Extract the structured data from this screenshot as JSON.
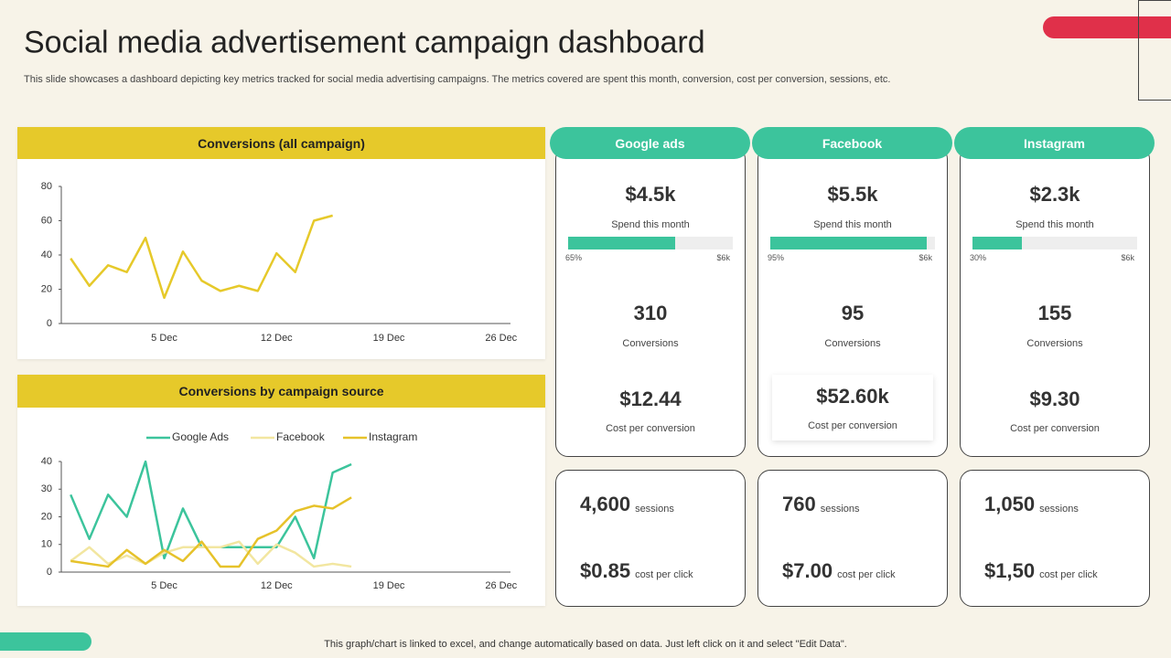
{
  "header": {
    "title": "Social media advertisement campaign dashboard",
    "subtitle": "This slide showcases a dashboard depicting key metrics tracked for social media advertising campaigns. The metrics covered are spent this month, conversion, cost per conversion, sessions, etc."
  },
  "chart_data": [
    {
      "type": "line",
      "title": "Conversions (all campaign)",
      "categories": [
        null,
        null,
        null,
        null,
        null,
        "5 Dec",
        null,
        null,
        null,
        null,
        null,
        "12 Dec",
        null,
        null,
        null,
        null,
        null,
        "19 Dec",
        null,
        null,
        null,
        null,
        null,
        "26 Dec"
      ],
      "values": [
        38,
        22,
        34,
        30,
        50,
        15,
        42,
        25,
        19,
        22,
        19,
        41,
        30,
        60,
        63,
        null,
        null,
        null,
        null,
        null,
        null,
        null,
        null,
        null
      ],
      "color": "#e6c92a",
      "ylim": [
        0,
        80
      ],
      "yticks": [
        0,
        20,
        40,
        60,
        80
      ],
      "grid": false
    },
    {
      "type": "line",
      "title": "Conversions by campaign source",
      "categories": [
        null,
        null,
        null,
        null,
        null,
        "5 Dec",
        null,
        null,
        null,
        null,
        null,
        "12 Dec",
        null,
        null,
        null,
        null,
        null,
        "19 Dec",
        null,
        null,
        null,
        null,
        null,
        "26 Dec"
      ],
      "series": [
        {
          "name": "Google Ads",
          "color": "#3cc49c",
          "values": [
            28,
            12,
            28,
            20,
            40,
            5,
            23,
            9,
            9,
            9,
            9,
            9,
            20,
            5,
            36,
            39,
            null,
            null,
            null,
            null,
            null,
            null,
            null,
            null
          ]
        },
        {
          "name": "Facebook",
          "color": "#f2e6a0",
          "values": [
            4,
            9,
            3,
            6,
            3,
            7,
            9,
            9,
            9,
            11,
            3,
            10,
            7,
            2,
            3,
            2,
            null,
            null,
            null,
            null,
            null,
            null,
            null,
            null
          ]
        },
        {
          "name": "Instagram",
          "color": "#e6c22a",
          "values": [
            4,
            3,
            2,
            8,
            3,
            8,
            4,
            11,
            2,
            2,
            12,
            15,
            22,
            24,
            23,
            27,
            null,
            null,
            null,
            null,
            null,
            null,
            null,
            null
          ]
        }
      ],
      "ylim": [
        0,
        40
      ],
      "yticks": [
        0,
        10,
        20,
        30,
        40
      ],
      "grid": false,
      "legend": "top"
    }
  ],
  "cards": [
    {
      "name": "Google ads",
      "spend": "$4.5k",
      "spend_label": "Spend this month",
      "progress": {
        "value": 65,
        "label": "65%"
      },
      "progress_max": "$6k",
      "conversions": "310",
      "conversions_label": "Conversions",
      "cpc_conv": "$12.44",
      "cpc_conv_label": "Cost per conversion",
      "sessions": "4,600",
      "sessions_label": "sessions",
      "cpc": "$0.85",
      "cpc_label": "cost per click"
    },
    {
      "name": "Facebook",
      "spend": "$5.5k",
      "spend_label": "Spend this month",
      "progress": {
        "value": 95,
        "label": "95%"
      },
      "progress_max": "$6k",
      "conversions": "95",
      "conversions_label": "Conversions",
      "cpc_conv": "$52.60k",
      "cpc_conv_label": "Cost per conversion",
      "sessions": "760",
      "sessions_label": "sessions",
      "cpc": "$7.00",
      "cpc_label": "cost per click"
    },
    {
      "name": "Instagram",
      "spend": "$2.3k",
      "spend_label": "Spend this month",
      "progress": {
        "value": 30,
        "label": "30%"
      },
      "progress_max": "$6k",
      "conversions": "155",
      "conversions_label": "Conversions",
      "cpc_conv": "$9.30",
      "cpc_conv_label": "Cost per conversion",
      "sessions": "1,050",
      "sessions_label": "sessions",
      "cpc": "$1,50",
      "cpc_label": "cost per click"
    }
  ],
  "footer": "This graph/chart is linked to excel, and change automatically based on data. Just left click on it and select \"Edit Data\"."
}
